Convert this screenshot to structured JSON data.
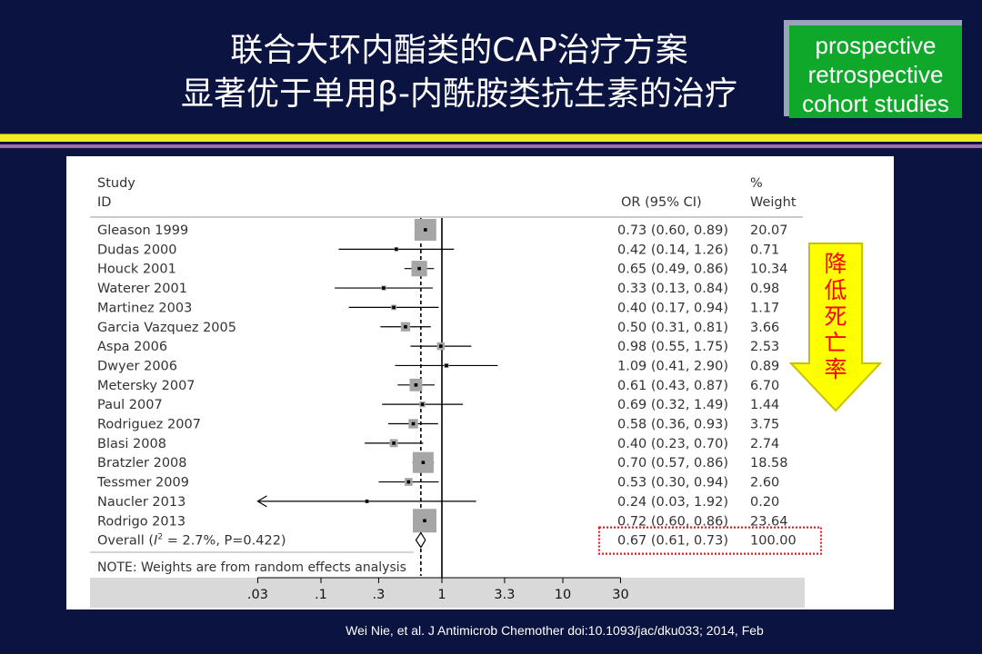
{
  "slide": {
    "title_line1": "联合大环内酯类的CAP治疗方案",
    "title_line2": "显著优于单用β-内酰胺类抗生素的治疗",
    "study_types": [
      "prospective",
      "retrospective",
      "cohort studies"
    ],
    "arrow_text": [
      "降",
      "低",
      "死",
      "亡",
      "率"
    ],
    "citation": "Wei Nie, et al. J Antimicrob Chemother doi:10.1093/jac/dku033; 2014, Feb",
    "colors": {
      "background": "#0b1440",
      "tag_green": "#0fa82a",
      "arrow_yellow": "#ffff00",
      "arrow_text_red": "#ff0000",
      "highlight_red": "#e0202a"
    }
  },
  "chart_data": {
    "type": "forest",
    "header": {
      "study_label_line1": "Study",
      "study_label_line2": "ID",
      "or_label": "OR (95% CI)",
      "weight_label_line1": "%",
      "weight_label_line2": "Weight"
    },
    "x_scale": "log",
    "x_ticks": [
      {
        "value": 0.03,
        "label": ".03"
      },
      {
        "value": 0.1,
        "label": ".1"
      },
      {
        "value": 0.3,
        "label": ".3"
      },
      {
        "value": 1,
        "label": "1"
      },
      {
        "value": 3.3,
        "label": "3.3"
      },
      {
        "value": 10,
        "label": "10"
      },
      {
        "value": 30,
        "label": "30"
      }
    ],
    "xlim": [
      0.03,
      30
    ],
    "studies": [
      {
        "name": "Gleason 1999",
        "or": 0.73,
        "lower": 0.6,
        "upper": 0.89,
        "text": "0.73 (0.60, 0.89)",
        "weight": "20.07"
      },
      {
        "name": "Dudas 2000",
        "or": 0.42,
        "lower": 0.14,
        "upper": 1.26,
        "text": "0.42 (0.14, 1.26)",
        "weight": "0.71"
      },
      {
        "name": "Houck 2001",
        "or": 0.65,
        "lower": 0.49,
        "upper": 0.86,
        "text": "0.65 (0.49, 0.86)",
        "weight": "10.34"
      },
      {
        "name": "Waterer 2001",
        "or": 0.33,
        "lower": 0.13,
        "upper": 0.84,
        "text": "0.33 (0.13, 0.84)",
        "weight": "0.98"
      },
      {
        "name": "Martinez 2003",
        "or": 0.4,
        "lower": 0.17,
        "upper": 0.94,
        "text": "0.40 (0.17, 0.94)",
        "weight": "1.17"
      },
      {
        "name": "Garcia Vazquez 2005",
        "or": 0.5,
        "lower": 0.31,
        "upper": 0.81,
        "text": "0.50 (0.31, 0.81)",
        "weight": "3.66"
      },
      {
        "name": "Aspa 2006",
        "or": 0.98,
        "lower": 0.55,
        "upper": 1.75,
        "text": "0.98 (0.55, 1.75)",
        "weight": "2.53"
      },
      {
        "name": "Dwyer 2006",
        "or": 1.09,
        "lower": 0.41,
        "upper": 2.9,
        "text": "1.09 (0.41, 2.90)",
        "weight": "0.89"
      },
      {
        "name": "Metersky 2007",
        "or": 0.61,
        "lower": 0.43,
        "upper": 0.87,
        "text": "0.61 (0.43, 0.87)",
        "weight": "6.70"
      },
      {
        "name": "Paul 2007",
        "or": 0.69,
        "lower": 0.32,
        "upper": 1.49,
        "text": "0.69 (0.32, 1.49)",
        "weight": "1.44"
      },
      {
        "name": "Rodriguez 2007",
        "or": 0.58,
        "lower": 0.36,
        "upper": 0.93,
        "text": "0.58 (0.36, 0.93)",
        "weight": "3.75"
      },
      {
        "name": "Blasi 2008",
        "or": 0.4,
        "lower": 0.23,
        "upper": 0.7,
        "text": "0.40 (0.23, 0.70)",
        "weight": "2.74"
      },
      {
        "name": "Bratzler 2008",
        "or": 0.7,
        "lower": 0.57,
        "upper": 0.86,
        "text": "0.70 (0.57, 0.86)",
        "weight": "18.58"
      },
      {
        "name": "Tessmer 2009",
        "or": 0.53,
        "lower": 0.3,
        "upper": 0.94,
        "text": "0.53 (0.30, 0.94)",
        "weight": "2.60"
      },
      {
        "name": "Naucler 2013",
        "or": 0.24,
        "lower": 0.03,
        "upper": 1.92,
        "text": "0.24 (0.03, 1.92)",
        "weight": "0.20",
        "lower_truncated": true
      },
      {
        "name": "Rodrigo 2013",
        "or": 0.72,
        "lower": 0.6,
        "upper": 0.86,
        "text": "0.72 (0.60, 0.86)",
        "weight": "23.64"
      }
    ],
    "overall": {
      "name_prefix": "Overall (",
      "i2_label": "I",
      "i2_sup": "2",
      "name_suffix": " = 2.7%, P=0.422)",
      "or": 0.67,
      "lower": 0.61,
      "upper": 0.73,
      "text": "0.67 (0.61, 0.73)",
      "weight": "100.00"
    },
    "note": "NOTE: Weights are from random effects analysis"
  }
}
